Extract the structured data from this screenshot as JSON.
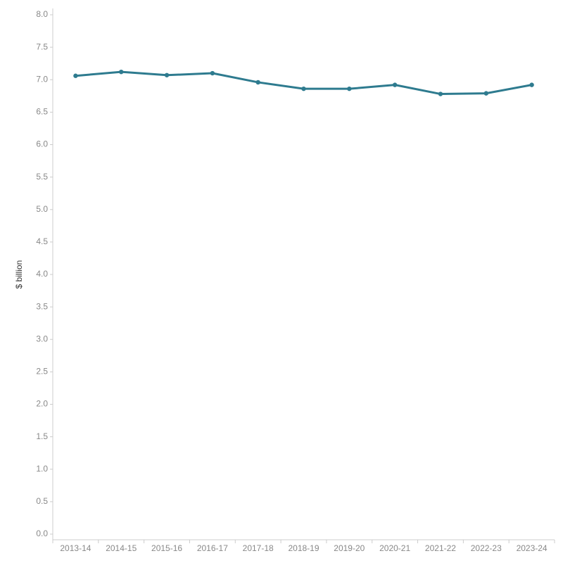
{
  "chart_data": {
    "type": "line",
    "y_label": "$ billion",
    "categories": [
      "2013-14",
      "2014-15",
      "2015-16",
      "2016-17",
      "2017-18",
      "2018-19",
      "2019-20",
      "2020-21",
      "2021-22",
      "2022-23",
      "2023-24"
    ],
    "series": [
      {
        "color": "#2e7b8f",
        "values": [
          7.06,
          7.12,
          7.07,
          7.1,
          6.96,
          6.86,
          6.86,
          6.92,
          6.78,
          6.79,
          6.92
        ]
      }
    ],
    "ylim": [
      0,
      8
    ],
    "yticks": [
      {
        "value": 0,
        "label": "0.0"
      },
      0.5,
      {
        "value": 1,
        "label": "1.0"
      },
      1.5,
      {
        "value": 2,
        "label": "2.0"
      },
      2.5,
      {
        "value": 3,
        "label": "3.0"
      },
      3.5,
      {
        "value": 4,
        "label": "4.0"
      },
      4.5,
      {
        "value": 5,
        "label": "5.0"
      },
      5.5,
      {
        "value": 6,
        "label": "6.0"
      },
      6.5,
      {
        "value": 7,
        "label": "7.0"
      },
      7.5,
      {
        "value": 8,
        "label": "8.0"
      }
    ],
    "grid": false
  }
}
